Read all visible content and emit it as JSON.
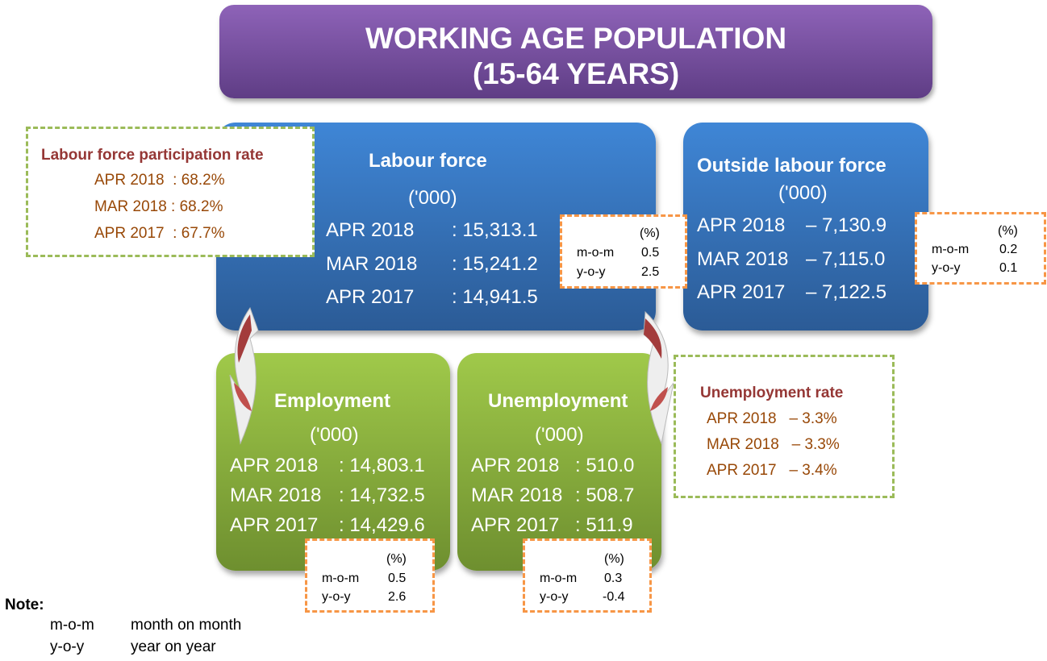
{
  "title": {
    "line1": "WORKING AGE POPULATION",
    "line2": "(15-64 YEARS)"
  },
  "unit": "('000)",
  "labour_force": {
    "title": "Labour force",
    "rows": [
      {
        "period": "APR 2018",
        "value": ": 15,313.1"
      },
      {
        "period": "MAR 2018",
        "value": ": 15,241.2"
      },
      {
        "period": "APR 2017",
        "value": ": 14,941.5"
      }
    ],
    "change": {
      "header": "(%)",
      "mom_label": "m-o-m",
      "mom": "0.5",
      "yoy_label": "y-o-y",
      "yoy": "2.5"
    }
  },
  "outside_labour_force": {
    "title": "Outside labour force",
    "rows": [
      {
        "period": "APR 2018",
        "value": "– 7,130.9"
      },
      {
        "period": "MAR 2018",
        "value": "– 7,115.0"
      },
      {
        "period": "APR 2017",
        "value": "– 7,122.5"
      }
    ],
    "change": {
      "header": "(%)",
      "mom_label": "m-o-m",
      "mom": "0.2",
      "yoy_label": "y-o-y",
      "yoy": "0.1"
    }
  },
  "employment": {
    "title": "Employment",
    "rows": [
      {
        "period": "APR 2018",
        "value": ": 14,803.1"
      },
      {
        "period": "MAR 2018",
        "value": ": 14,732.5"
      },
      {
        "period": "APR 2017",
        "value": ": 14,429.6"
      }
    ],
    "change": {
      "header": "(%)",
      "mom_label": "m-o-m",
      "mom": "0.5",
      "yoy_label": "y-o-y",
      "yoy": "2.6"
    }
  },
  "unemployment": {
    "title": "Unemployment",
    "rows": [
      {
        "period": "APR 2018",
        "value": ": 510.0"
      },
      {
        "period": "MAR 2018",
        "value": ": 508.7"
      },
      {
        "period": "APR 2017",
        "value": ": 511.9"
      }
    ],
    "change": {
      "header": "(%)",
      "mom_label": "m-o-m",
      "mom": "0.3",
      "yoy_label": "y-o-y",
      "yoy": "-0.4"
    }
  },
  "lfpr": {
    "title": "Labour force participation rate",
    "rows": [
      "APR 2018  : 68.2%",
      "MAR 2018 : 68.2%",
      "APR 2017  : 67.7%"
    ]
  },
  "unemployment_rate": {
    "title": "Unemployment rate",
    "rows": [
      "APR 2018   – 3.3%",
      "MAR 2018   – 3.3%",
      "APR 2017   – 3.4%"
    ]
  },
  "note": {
    "title": "Note:",
    "items": [
      {
        "abbr": "m-o-m",
        "meaning": "month on month"
      },
      {
        "abbr": "y-o-y",
        "meaning": "year on year"
      }
    ]
  },
  "colors": {
    "purple": "#7a52a3",
    "blue": "#3573c0",
    "green": "#8bb03f",
    "orange": "#f79646",
    "dark_red": "#953735",
    "brown": "#984807"
  }
}
